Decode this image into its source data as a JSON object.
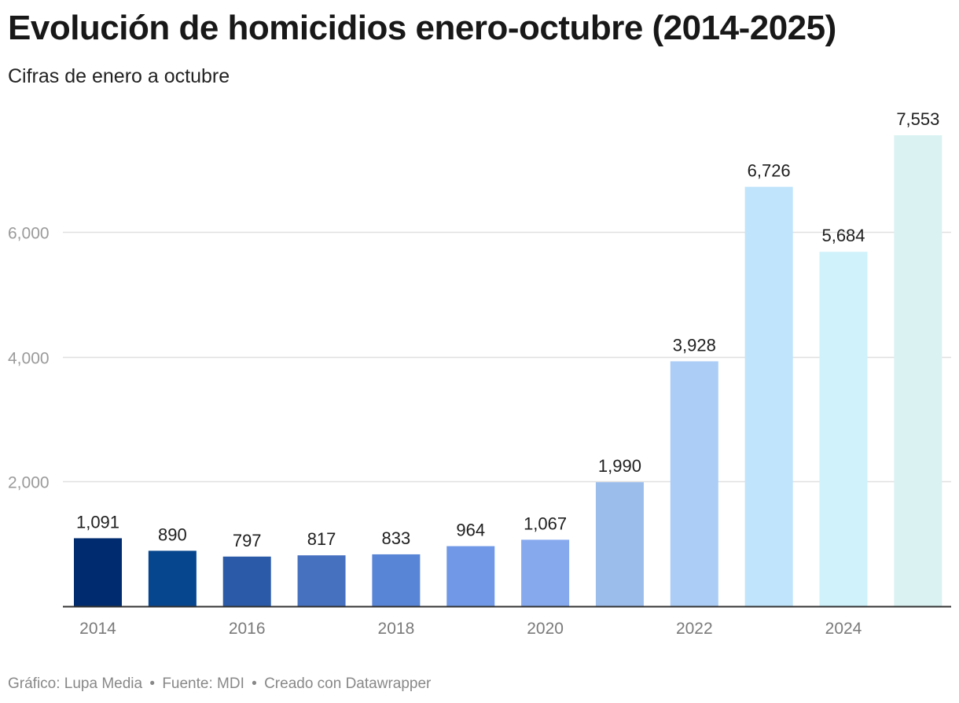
{
  "title": "Evolución de homicidios enero-octubre (2014-2025)",
  "subtitle": "Cifras de enero a octubre",
  "footer": {
    "credit": "Gráfico: Lupa Media",
    "source": "Fuente: MDI",
    "tool": "Creado con Datawrapper",
    "separator": "•"
  },
  "chart_data": {
    "type": "bar",
    "categories": [
      "2014",
      "2015",
      "2016",
      "2017",
      "2018",
      "2019",
      "2020",
      "2021",
      "2022",
      "2023",
      "2024",
      "2025"
    ],
    "values": [
      1091,
      890,
      797,
      817,
      833,
      964,
      1067,
      1990,
      3928,
      6726,
      5684,
      7553
    ],
    "value_labels": [
      "1,091",
      "890",
      "797",
      "817",
      "833",
      "964",
      "1,067",
      "1,990",
      "3,928",
      "6,726",
      "5,684",
      "7,553"
    ],
    "colors": [
      "#002b6e",
      "#05468f",
      "#2b5ba8",
      "#4671bf",
      "#5985d6",
      "#7098e6",
      "#86a9ee",
      "#9bbdec",
      "#abcdf6",
      "#bfe4fb",
      "#cff2fb",
      "#dbf2f3"
    ],
    "x_tick_labels": [
      "2014",
      "2016",
      "2018",
      "2020",
      "2022",
      "2024"
    ],
    "y_ticks": [
      2000,
      4000,
      6000
    ],
    "y_tick_labels": [
      "2,000",
      "4,000",
      "6,000"
    ],
    "ylim": [
      0,
      7553
    ],
    "xlabel": "",
    "ylabel": "",
    "grid": true,
    "legend": "none"
  }
}
